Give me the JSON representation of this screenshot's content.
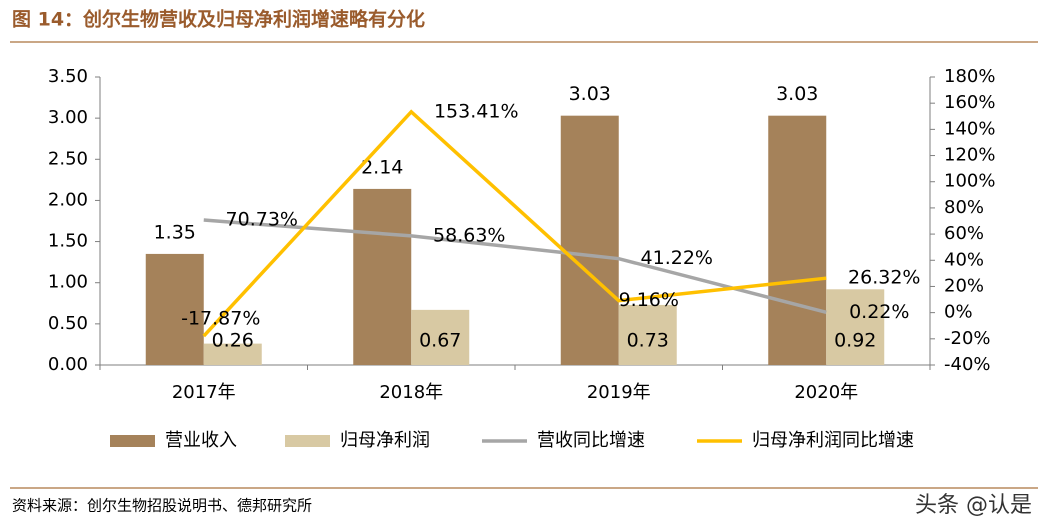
{
  "chart_data": {
    "type": "bar_line",
    "title": "图 14：创尔生物营收及归母净利润增速略有分化",
    "source": "资料来源：创尔生物招股说明书、德邦研究所",
    "watermark": "头条 @认是",
    "categories": [
      "2017年",
      "2018年",
      "2019年",
      "2020年"
    ],
    "series": [
      {
        "name": "营业收入",
        "type": "bar",
        "color": "#a5825a",
        "values": [
          1.35,
          2.14,
          3.03,
          3.03
        ]
      },
      {
        "name": "归母净利润",
        "type": "bar",
        "color": "#d8c9a3",
        "values": [
          0.26,
          0.67,
          0.73,
          0.92
        ]
      },
      {
        "name": "营收同比增速",
        "type": "line",
        "axis": "y2",
        "color": "#a6a6a6",
        "values": [
          70.73,
          58.63,
          41.22,
          0.22
        ],
        "value_labels": [
          "70.73%",
          "58.63%",
          "41.22%",
          "0.22%"
        ]
      },
      {
        "name": "归母净利润同比增速",
        "type": "line",
        "axis": "y2",
        "color": "#ffc000",
        "values": [
          -17.87,
          153.41,
          9.16,
          26.32
        ],
        "value_labels": [
          "-17.87%",
          "153.41%",
          "9.16%",
          "26.32%"
        ]
      }
    ],
    "ylim": [
      0,
      3.5
    ],
    "yticks": [
      {
        "value": 0,
        "label": "0.00"
      },
      {
        "value": 0.5,
        "label": "0.50"
      },
      {
        "value": 1,
        "label": "1.00"
      },
      {
        "value": 1.5,
        "label": "1.50"
      },
      {
        "value": 2,
        "label": "2.00"
      },
      {
        "value": 2.5,
        "label": "2.50"
      },
      {
        "value": 3,
        "label": "3.00"
      },
      {
        "value": 3.5,
        "label": "3.50"
      }
    ],
    "y2lim": [
      -40,
      180
    ],
    "y2ticks": [
      {
        "value": -40,
        "label": "-40%"
      },
      {
        "value": -20,
        "label": "-20%"
      },
      {
        "value": 0,
        "label": "0%"
      },
      {
        "value": 20,
        "label": "20%"
      },
      {
        "value": 40,
        "label": "40%"
      },
      {
        "value": 60,
        "label": "60%"
      },
      {
        "value": 80,
        "label": "80%"
      },
      {
        "value": 100,
        "label": "100%"
      },
      {
        "value": 120,
        "label": "120%"
      },
      {
        "value": 140,
        "label": "140%"
      },
      {
        "value": 160,
        "label": "160%"
      },
      {
        "value": 180,
        "label": "180%"
      }
    ],
    "legend": "bottom"
  }
}
